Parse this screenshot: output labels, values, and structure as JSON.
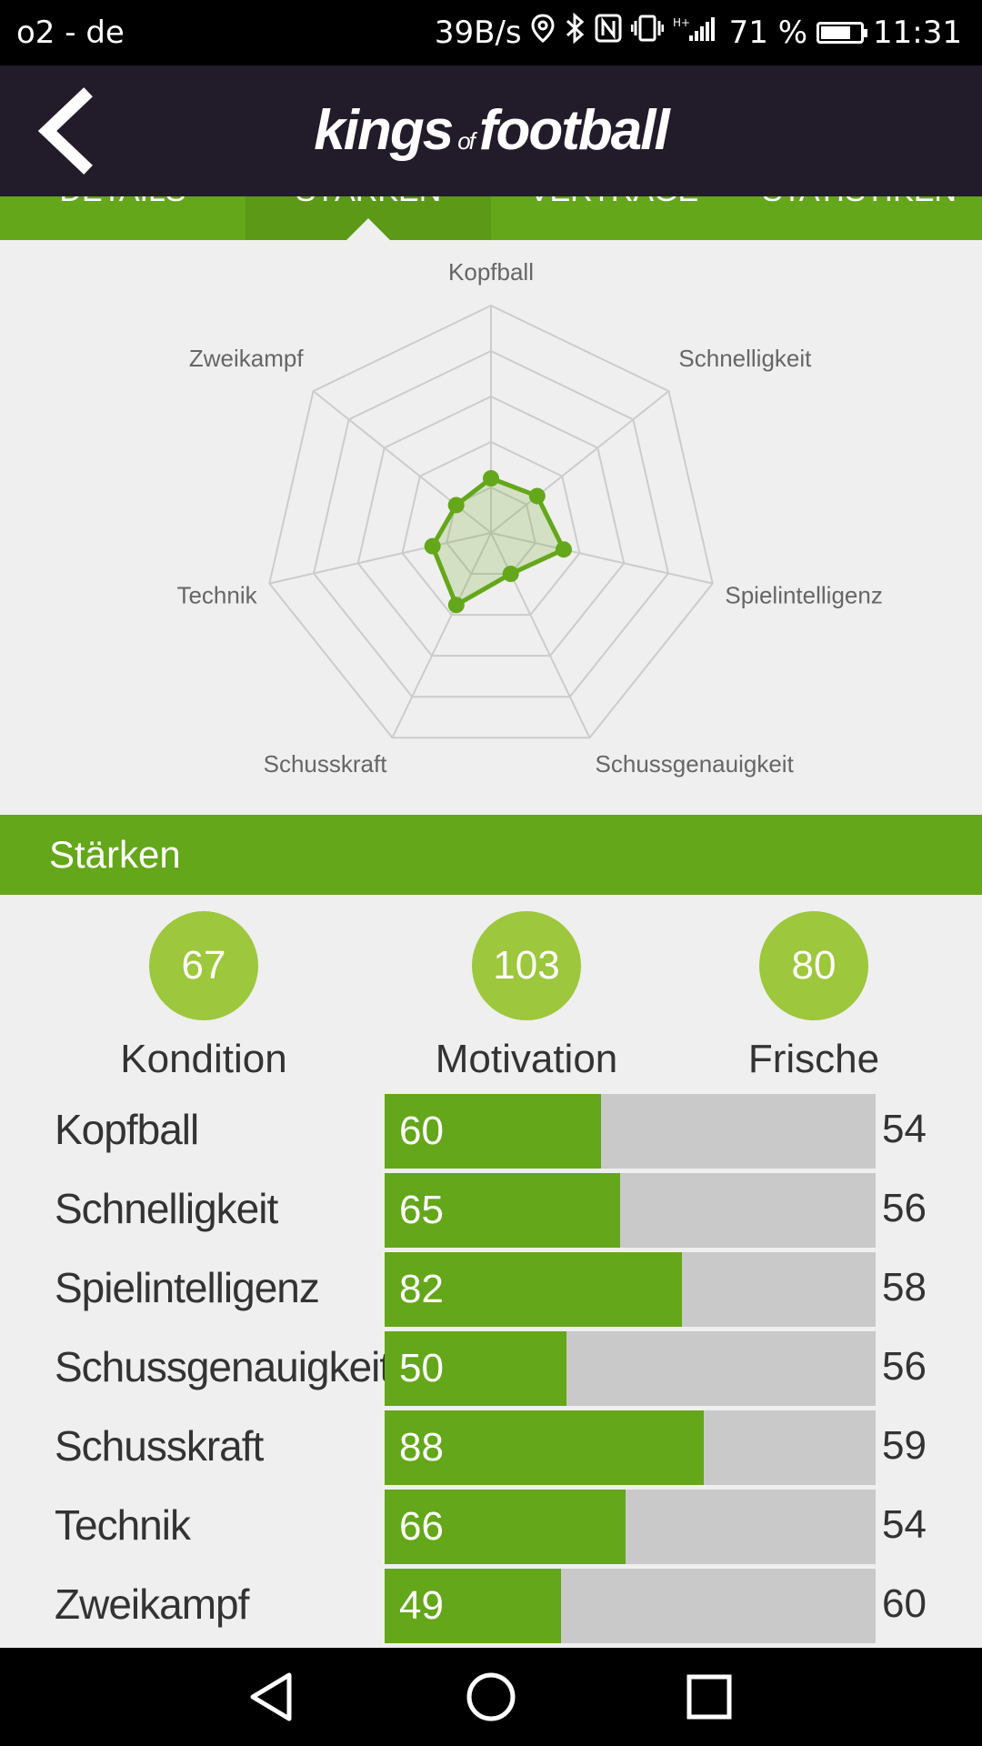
{
  "status_bar": {
    "carrier": "o2 - de",
    "speed": "39B/s",
    "battery_percent": "71 %",
    "time": "11:31",
    "icons": [
      "location-icon",
      "bluetooth-icon",
      "nfc-icon",
      "vibrate-icon",
      "signal-icon",
      "battery-icon"
    ]
  },
  "app_bar": {
    "logo_left": "kings",
    "logo_mid": "of",
    "logo_right": "football",
    "back_icon": "chevron-left-icon"
  },
  "tabs": [
    {
      "label": "DETAILS"
    },
    {
      "label": "STÄRKEN",
      "active": true
    },
    {
      "label": "VERTRÄGE"
    },
    {
      "label": "STATISTIKEN"
    }
  ],
  "chart_data": {
    "type": "radar",
    "axes": [
      "Kopfball",
      "Schnelligkeit",
      "Spielintelligenz",
      "Schussgenauigkeit",
      "Schusskraft",
      "Technik",
      "Zweikampf"
    ],
    "values": [
      60,
      65,
      82,
      50,
      88,
      66,
      49
    ],
    "rmax": 250,
    "rings": 5,
    "colors": {
      "line": "#64a71a",
      "fill": "#64a71a",
      "grid": "#cccccc"
    }
  },
  "section": {
    "title": "Stärken"
  },
  "summary": [
    {
      "value": "67",
      "label": "Kondition"
    },
    {
      "value": "103",
      "label": "Motivation"
    },
    {
      "value": "80",
      "label": "Frische"
    }
  ],
  "attributes": [
    {
      "name": "Kopfball",
      "value": 60,
      "compare": "54",
      "fill_fraction": 0.44
    },
    {
      "name": "Schnelligkeit",
      "value": 65,
      "compare": "56",
      "fill_fraction": 0.48
    },
    {
      "name": "Spielintelligenz",
      "value": 82,
      "compare": "58",
      "fill_fraction": 0.605
    },
    {
      "name": "Schussgenauigkeit",
      "value": 50,
      "compare": "56",
      "fill_fraction": 0.37
    },
    {
      "name": "Schusskraft",
      "value": 88,
      "compare": "59",
      "fill_fraction": 0.65
    },
    {
      "name": "Technik",
      "value": 66,
      "compare": "54",
      "fill_fraction": 0.49
    },
    {
      "name": "Zweikampf",
      "value": 49,
      "compare": "60",
      "fill_fraction": 0.36
    }
  ],
  "colors": {
    "brand_green": "#64a71a",
    "circle_green": "#9dc73c",
    "app_bar": "#221c2a",
    "track": "#c9c9c9"
  }
}
